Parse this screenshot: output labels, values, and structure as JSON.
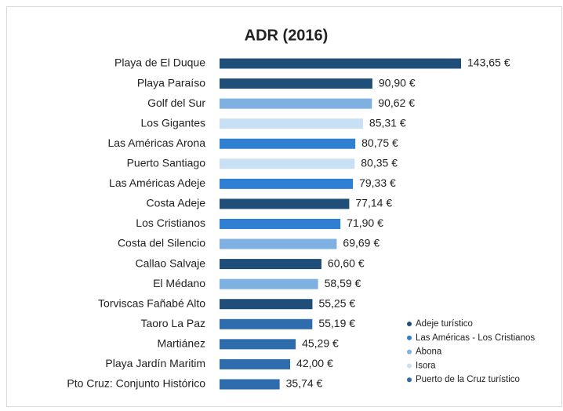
{
  "chart_data": {
    "type": "bar",
    "orientation": "horizontal",
    "title": "ADR (2016)",
    "categories": [
      "Playa de El Duque",
      "Playa Paraíso",
      "Golf del Sur",
      "Los Gigantes",
      "Las Américas Arona",
      "Puerto Santiago",
      "Las Américas Adeje",
      "Costa Adeje",
      "Los Cristianos",
      "Costa del Silencio",
      "Callao Salvaje",
      "El Médano",
      "Torviscas Fañabé Alto",
      "Taoro La Paz",
      "Martiánez",
      "Playa Jardín Maritim",
      "Pto Cruz: Conjunto Histórico"
    ],
    "series": [
      {
        "name": "Adeje turístico",
        "color": "#1f4e79",
        "values": [
          143.65,
          90.9,
          null,
          null,
          null,
          null,
          null,
          77.14,
          null,
          null,
          60.6,
          null,
          55.25,
          null,
          null,
          null,
          null
        ],
        "value_labels": [
          "143,65 €",
          "90,90 €",
          null,
          null,
          null,
          null,
          null,
          "77,14 €",
          null,
          null,
          "60,60 €",
          null,
          "55,25 €",
          null,
          null,
          null,
          null
        ]
      },
      {
        "name": "Las Américas - Los Cristianos",
        "color": "#2f7fd2",
        "values": [
          null,
          null,
          null,
          null,
          80.75,
          null,
          79.33,
          null,
          71.9,
          null,
          null,
          null,
          null,
          null,
          null,
          null,
          null
        ],
        "value_labels": [
          null,
          null,
          null,
          null,
          "80,75 €",
          null,
          "79,33 €",
          null,
          "71,90 €",
          null,
          null,
          null,
          null,
          null,
          null,
          null,
          null
        ]
      },
      {
        "name": "Abona",
        "color": "#7eb0e2",
        "values": [
          null,
          null,
          90.62,
          null,
          null,
          null,
          null,
          null,
          null,
          69.69,
          null,
          58.59,
          null,
          null,
          null,
          null,
          null
        ],
        "value_labels": [
          null,
          null,
          "90,62 €",
          null,
          null,
          null,
          null,
          null,
          null,
          "69,69 €",
          null,
          "58,59 €",
          null,
          null,
          null,
          null,
          null
        ]
      },
      {
        "name": "Isora",
        "color": "#c9dff3",
        "values": [
          null,
          null,
          null,
          85.31,
          null,
          80.35,
          null,
          null,
          null,
          null,
          null,
          null,
          null,
          null,
          null,
          null,
          null
        ],
        "value_labels": [
          null,
          null,
          null,
          "85,31 €",
          null,
          "80,35 €",
          null,
          null,
          null,
          null,
          null,
          null,
          null,
          null,
          null,
          null,
          null
        ]
      },
      {
        "name": "Puerto de la Cruz turístico",
        "color": "#2e6cae",
        "values": [
          null,
          null,
          null,
          null,
          null,
          null,
          null,
          null,
          null,
          null,
          null,
          null,
          null,
          55.19,
          45.29,
          42.0,
          35.74
        ],
        "value_labels": [
          null,
          null,
          null,
          null,
          null,
          null,
          null,
          null,
          null,
          null,
          null,
          null,
          null,
          "55,19 €",
          "45,29 €",
          "42,00 €",
          "35,74 €"
        ]
      }
    ]
  }
}
